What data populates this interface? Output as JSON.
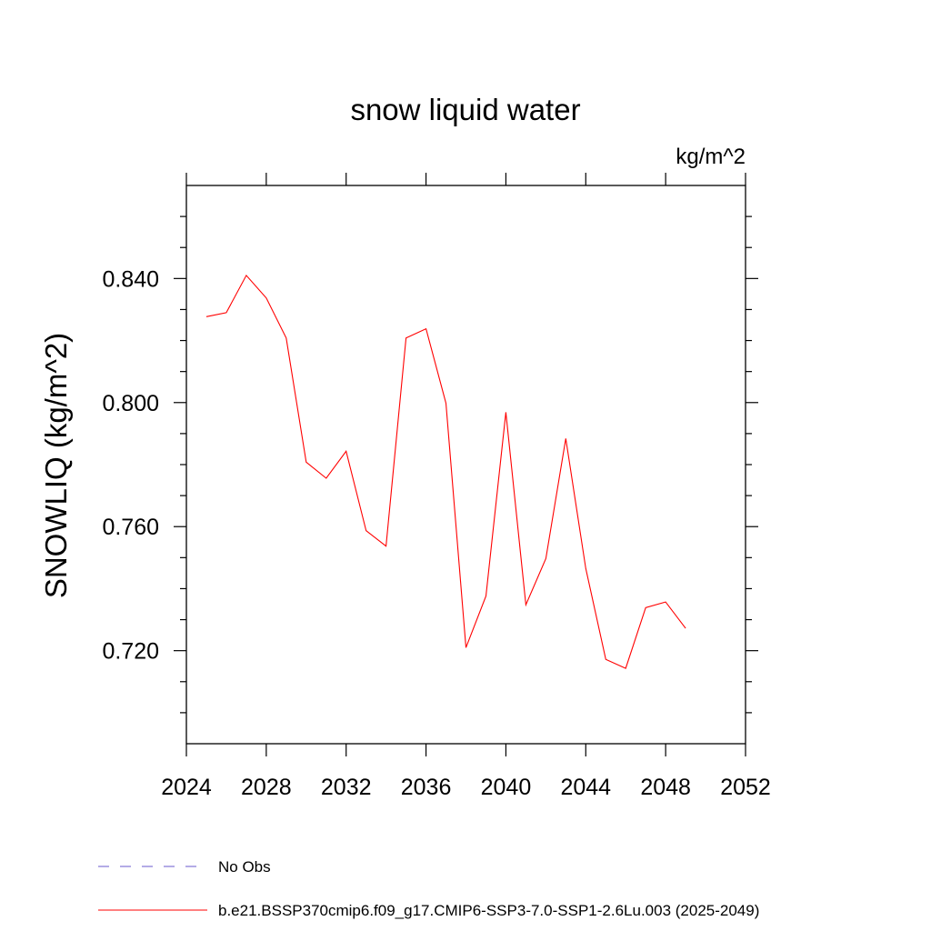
{
  "chart_data": {
    "type": "line",
    "title": "snow liquid water",
    "units_label": "kg/m^2",
    "ylabel": "SNOWLIQ  (kg/m^2)",
    "xlabel": "",
    "xlim": [
      2024,
      2052
    ],
    "ylim": [
      0.69,
      0.87
    ],
    "x_ticks": [
      2024,
      2028,
      2032,
      2036,
      2040,
      2044,
      2048,
      2052
    ],
    "x_tick_labels": [
      "2024",
      "2028",
      "2032",
      "2036",
      "2040",
      "2044",
      "2048",
      "2052"
    ],
    "y_ticks": [
      0.72,
      0.76,
      0.8,
      0.84
    ],
    "y_tick_labels": [
      "0.720",
      "0.760",
      "0.800",
      "0.840"
    ],
    "grid": false,
    "series": [
      {
        "name": "b.e21.BSSP370cmip6.f09_g17.CMIP6-SSP3-7.0-SSP1-2.6Lu.003 (2025-2049)",
        "color": "#ff0000",
        "x": [
          2025,
          2026,
          2027,
          2028,
          2029,
          2030,
          2031,
          2032,
          2033,
          2034,
          2035,
          2036,
          2037,
          2038,
          2039,
          2040,
          2041,
          2042,
          2043,
          2044,
          2045,
          2046,
          2047,
          2048,
          2049
        ],
        "values": [
          0.8277,
          0.829,
          0.841,
          0.8337,
          0.8208,
          0.7808,
          0.7756,
          0.7843,
          0.7587,
          0.7537,
          0.8208,
          0.8238,
          0.7998,
          0.721,
          0.7376,
          0.7969,
          0.7348,
          0.7497,
          0.7884,
          0.7465,
          0.7172,
          0.7143,
          0.7339,
          0.7357,
          0.7272
        ]
      }
    ],
    "legend": [
      {
        "label": "No Obs",
        "color": "#6a5acd",
        "style": "dashed"
      },
      {
        "label": "b.e21.BSSP370cmip6.f09_g17.CMIP6-SSP3-7.0-SSP1-2.6Lu.003 (2025-2049)",
        "color": "#ff0000",
        "style": "solid"
      }
    ]
  }
}
